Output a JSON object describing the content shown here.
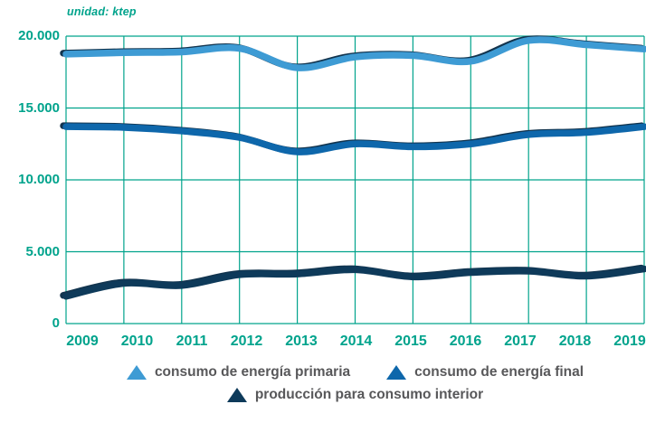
{
  "unit_label": "unidad: ktep",
  "colors": {
    "axis_teal": "#00a38c",
    "legend_text": "#58585a",
    "background": "#ffffff",
    "line_shadow": "#12344e"
  },
  "chart_data": {
    "type": "line",
    "title": "",
    "unit": "ktep",
    "x": [
      "2009",
      "2010",
      "2011",
      "2012",
      "2013",
      "2014",
      "2015",
      "2016",
      "2017",
      "2018",
      "2019"
    ],
    "ylim": [
      0,
      20000
    ],
    "yticks": [
      {
        "value": 20000,
        "label": "20.000"
      },
      {
        "value": 15000,
        "label": "15.000"
      },
      {
        "value": 10000,
        "label": "10.000"
      },
      {
        "value": 5000,
        "label": "5.000"
      },
      {
        "value": 0,
        "label": "0"
      }
    ],
    "grid": true,
    "legend_position": "bottom",
    "series": [
      {
        "name": "consumo de energía primaria",
        "color": "#3e9bd4",
        "values": [
          18750,
          18850,
          18900,
          19150,
          17800,
          18550,
          18650,
          18250,
          19700,
          19400,
          19100
        ]
      },
      {
        "name": "consumo de energía final",
        "color": "#0e67ab",
        "values": [
          13700,
          13650,
          13400,
          12950,
          11950,
          12500,
          12300,
          12500,
          13150,
          13300,
          13700
        ]
      },
      {
        "name": "producción para consumo interior",
        "color": "#0e3a5a",
        "values": [
          1900,
          2800,
          2650,
          3400,
          3450,
          3750,
          3250,
          3550,
          3650,
          3300,
          3800
        ]
      }
    ]
  }
}
